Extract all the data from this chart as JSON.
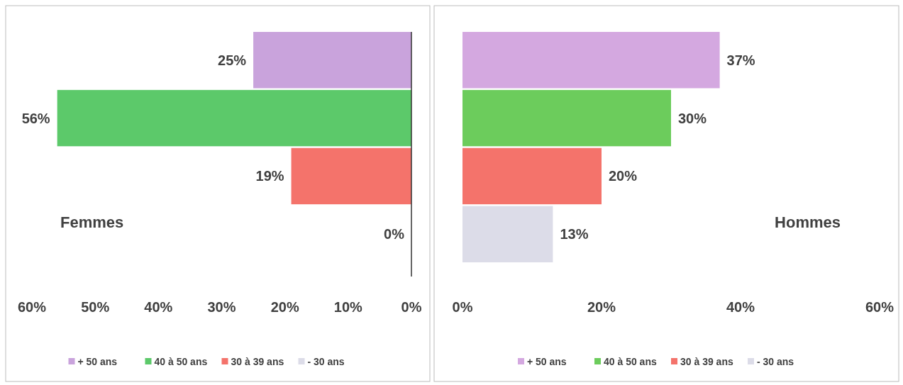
{
  "chart_data": [
    {
      "type": "bar",
      "orientation": "horizontal",
      "categories": [
        null,
        null,
        null,
        null
      ],
      "series": [
        {
          "name": "+ 50 ans",
          "color": "#c9a3dc",
          "values": [
            25,
            null,
            null,
            null
          ],
          "value_labels": [
            "25%",
            null,
            null,
            null
          ]
        },
        {
          "name": "40 à 50 ans",
          "color": "#5cc96a",
          "values": [
            null,
            56,
            null,
            null
          ],
          "value_labels": [
            null,
            "56%",
            null,
            null
          ]
        },
        {
          "name": "30 à 39 ans",
          "color": "#f4736b",
          "values": [
            null,
            null,
            19,
            null
          ],
          "value_labels": [
            null,
            null,
            "19%",
            null
          ]
        },
        {
          "name": "- 30 ans",
          "color": "#dcdce8",
          "values": [
            null,
            null,
            null,
            0
          ],
          "value_labels": [
            null,
            null,
            null,
            "0%"
          ]
        }
      ],
      "xlim": [
        60,
        0
      ],
      "xticks": [
        {
          "value": 60,
          "label": "60%"
        },
        {
          "value": 50,
          "label": "50%"
        },
        {
          "value": 40,
          "label": "40%"
        },
        {
          "value": 30,
          "label": "30%"
        },
        {
          "value": 20,
          "label": "20%"
        },
        {
          "value": 10,
          "label": "10%"
        },
        {
          "value": 0,
          "label": "0%"
        }
      ],
      "tick_labels": "x",
      "legend": "bottom",
      "annotations": [
        "Femmes"
      ]
    },
    {
      "type": "bar",
      "orientation": "horizontal",
      "categories": [
        null,
        null,
        null,
        null
      ],
      "series": [
        {
          "name": "+ 50 ans",
          "color": "#d4a8e0",
          "values": [
            37,
            null,
            null,
            null
          ],
          "value_labels": [
            "37%",
            null,
            null,
            null
          ]
        },
        {
          "name": "40 à 50 ans",
          "color": "#6ccc5c",
          "values": [
            null,
            30,
            null,
            null
          ],
          "value_labels": [
            null,
            "30%",
            null,
            null
          ]
        },
        {
          "name": "30 à 39 ans",
          "color": "#f4736b",
          "values": [
            null,
            null,
            20,
            null
          ],
          "value_labels": [
            null,
            null,
            "20%",
            null
          ]
        },
        {
          "name": "- 30 ans",
          "color": "#dcdce8",
          "values": [
            null,
            null,
            null,
            13
          ],
          "value_labels": [
            null,
            null,
            null,
            "13%"
          ]
        }
      ],
      "xlim": [
        0,
        60
      ],
      "xticks": [
        {
          "value": 0,
          "label": "0%"
        },
        {
          "value": 20,
          "label": "20%"
        },
        {
          "value": 40,
          "label": "40%"
        },
        {
          "value": 60,
          "label": "60%"
        }
      ],
      "tick_labels": "x",
      "legend": "bottom",
      "annotations": [
        "Hommes"
      ]
    }
  ]
}
